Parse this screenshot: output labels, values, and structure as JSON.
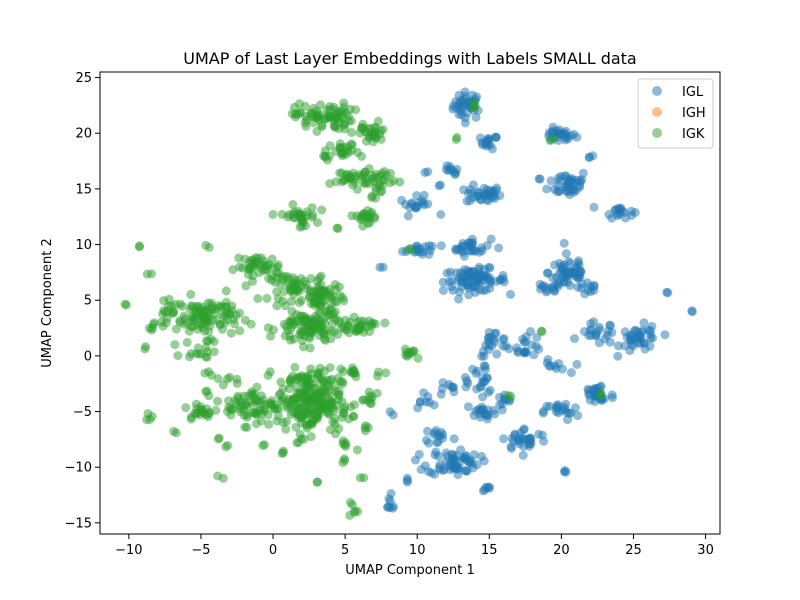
{
  "chart_data": {
    "type": "scatter",
    "title": "UMAP of Last Layer Embeddings with Labels SMALL data",
    "xlabel": "UMAP Component 1",
    "ylabel": "UMAP Component 2",
    "xlim": [
      -12,
      31
    ],
    "ylim": [
      -16,
      25.5
    ],
    "xticks": [
      -10,
      -5,
      0,
      5,
      10,
      15,
      20,
      25,
      30
    ],
    "yticks": [
      -15,
      -10,
      -5,
      0,
      5,
      10,
      15,
      20,
      25
    ],
    "grid": false,
    "legend_position": "top-right",
    "series": [
      {
        "name": "IGL",
        "color": "#1f77b4",
        "marker_alpha": 0.5,
        "clusters": [
          {
            "x": 13.5,
            "y": 22.5,
            "sx": 0.5,
            "sy": 0.6,
            "n": 40
          },
          {
            "x": 15.0,
            "y": 19.2,
            "sx": 0.3,
            "sy": 0.3,
            "n": 16
          },
          {
            "x": 19.8,
            "y": 19.8,
            "sx": 0.6,
            "sy": 0.3,
            "n": 26
          },
          {
            "x": 22.0,
            "y": 18.0,
            "sx": 0.15,
            "sy": 0.15,
            "n": 3
          },
          {
            "x": 12.3,
            "y": 16.5,
            "sx": 0.3,
            "sy": 0.3,
            "n": 10
          },
          {
            "x": 14.6,
            "y": 14.5,
            "sx": 0.6,
            "sy": 0.4,
            "n": 34
          },
          {
            "x": 20.5,
            "y": 15.5,
            "sx": 0.7,
            "sy": 0.6,
            "n": 40
          },
          {
            "x": 24.0,
            "y": 13.0,
            "sx": 0.5,
            "sy": 0.3,
            "n": 18
          },
          {
            "x": 10.0,
            "y": 13.5,
            "sx": 0.6,
            "sy": 0.4,
            "n": 18
          },
          {
            "x": 10.0,
            "y": 9.6,
            "sx": 0.5,
            "sy": 0.3,
            "n": 18
          },
          {
            "x": 13.7,
            "y": 9.8,
            "sx": 0.7,
            "sy": 0.4,
            "n": 30
          },
          {
            "x": 14.0,
            "y": 6.8,
            "sx": 1.1,
            "sy": 0.5,
            "n": 80
          },
          {
            "x": 20.5,
            "y": 7.5,
            "sx": 0.7,
            "sy": 0.8,
            "n": 50
          },
          {
            "x": 19.0,
            "y": 6.0,
            "sx": 0.5,
            "sy": 0.3,
            "n": 14
          },
          {
            "x": 22.0,
            "y": 6.0,
            "sx": 0.4,
            "sy": 0.3,
            "n": 10
          },
          {
            "x": 27.3,
            "y": 5.7,
            "sx": 0.1,
            "sy": 0.1,
            "n": 2
          },
          {
            "x": 29.0,
            "y": 4.0,
            "sx": 0.1,
            "sy": 0.1,
            "n": 2
          },
          {
            "x": 22.5,
            "y": 2.0,
            "sx": 0.6,
            "sy": 0.5,
            "n": 20
          },
          {
            "x": 25.5,
            "y": 1.5,
            "sx": 0.7,
            "sy": 0.6,
            "n": 40
          },
          {
            "x": 17.5,
            "y": 1.0,
            "sx": 0.6,
            "sy": 0.5,
            "n": 20
          },
          {
            "x": 15.3,
            "y": 1.2,
            "sx": 0.5,
            "sy": 0.6,
            "n": 20
          },
          {
            "x": 14.5,
            "y": -2.0,
            "sx": 0.5,
            "sy": 0.7,
            "n": 20
          },
          {
            "x": 19.5,
            "y": -1.0,
            "sx": 0.5,
            "sy": 0.3,
            "n": 10
          },
          {
            "x": 12.0,
            "y": -3.0,
            "sx": 0.4,
            "sy": 0.4,
            "n": 8
          },
          {
            "x": 10.5,
            "y": -4.0,
            "sx": 0.4,
            "sy": 0.4,
            "n": 8
          },
          {
            "x": 14.5,
            "y": -5.0,
            "sx": 0.6,
            "sy": 0.3,
            "n": 20
          },
          {
            "x": 16.0,
            "y": -4.0,
            "sx": 0.3,
            "sy": 0.3,
            "n": 8
          },
          {
            "x": 20.0,
            "y": -5.0,
            "sx": 0.6,
            "sy": 0.4,
            "n": 20
          },
          {
            "x": 22.5,
            "y": -3.5,
            "sx": 0.6,
            "sy": 0.6,
            "n": 30
          },
          {
            "x": 11.5,
            "y": -7.2,
            "sx": 0.5,
            "sy": 0.4,
            "n": 14
          },
          {
            "x": 17.5,
            "y": -7.5,
            "sx": 0.8,
            "sy": 0.5,
            "n": 30
          },
          {
            "x": 12.5,
            "y": -9.5,
            "sx": 0.9,
            "sy": 0.6,
            "n": 60
          },
          {
            "x": 14.8,
            "y": -12.0,
            "sx": 0.2,
            "sy": 0.2,
            "n": 6
          },
          {
            "x": 20.3,
            "y": -10.4,
            "sx": 0.15,
            "sy": 0.15,
            "n": 3
          },
          {
            "x": 8.0,
            "y": -13.3,
            "sx": 0.3,
            "sy": 0.4,
            "n": 8
          },
          {
            "x": 9.3,
            "y": -11.2,
            "sx": 0.15,
            "sy": 0.15,
            "n": 3
          },
          {
            "x": 13.2,
            "y": -2.5,
            "sx": 0.15,
            "sy": 0.15,
            "n": 3
          },
          {
            "x": 7.5,
            "y": 8.0,
            "sx": 0.1,
            "sy": 0.1,
            "n": 2
          },
          {
            "x": 8.2,
            "y": -5.2,
            "sx": 0.1,
            "sy": 0.1,
            "n": 2
          },
          {
            "x": 10.5,
            "y": 16.5,
            "sx": 0.1,
            "sy": 0.1,
            "n": 2
          },
          {
            "x": 11.5,
            "y": 15.3,
            "sx": 0.1,
            "sy": 0.1,
            "n": 2
          },
          {
            "x": 18.5,
            "y": 15.8,
            "sx": 0.1,
            "sy": 0.1,
            "n": 2
          }
        ]
      },
      {
        "name": "IGH",
        "color": "#ff7f0e",
        "marker_alpha": 0.5,
        "clusters": []
      },
      {
        "name": "IGK",
        "color": "#2ca02c",
        "marker_alpha": 0.5,
        "clusters": [
          {
            "x": 3.5,
            "y": 21.5,
            "sx": 1.0,
            "sy": 0.6,
            "n": 70
          },
          {
            "x": 6.8,
            "y": 20.0,
            "sx": 0.6,
            "sy": 0.5,
            "n": 30
          },
          {
            "x": 5.0,
            "y": 18.3,
            "sx": 0.5,
            "sy": 0.4,
            "n": 20
          },
          {
            "x": 3.8,
            "y": 17.8,
            "sx": 0.2,
            "sy": 0.4,
            "n": 6
          },
          {
            "x": 5.5,
            "y": 16.0,
            "sx": 0.7,
            "sy": 0.4,
            "n": 30
          },
          {
            "x": 7.5,
            "y": 16.0,
            "sx": 0.6,
            "sy": 0.4,
            "n": 20
          },
          {
            "x": 7.3,
            "y": 14.8,
            "sx": 0.3,
            "sy": 0.3,
            "n": 8
          },
          {
            "x": 1.8,
            "y": 12.5,
            "sx": 0.6,
            "sy": 0.5,
            "n": 30
          },
          {
            "x": 6.5,
            "y": 12.6,
            "sx": 0.6,
            "sy": 0.3,
            "n": 20
          },
          {
            "x": 4.5,
            "y": 11.3,
            "sx": 0.1,
            "sy": 0.1,
            "n": 2
          },
          {
            "x": -9.3,
            "y": 9.9,
            "sx": 0.1,
            "sy": 0.1,
            "n": 2
          },
          {
            "x": -4.5,
            "y": 9.7,
            "sx": 0.1,
            "sy": 0.1,
            "n": 2
          },
          {
            "x": -1.0,
            "y": 8.0,
            "sx": 0.8,
            "sy": 0.5,
            "n": 40
          },
          {
            "x": 1.5,
            "y": 6.2,
            "sx": 0.9,
            "sy": 0.6,
            "n": 50
          },
          {
            "x": 3.5,
            "y": 5.0,
            "sx": 0.7,
            "sy": 0.9,
            "n": 60
          },
          {
            "x": -8.7,
            "y": 7.4,
            "sx": 0.1,
            "sy": 0.1,
            "n": 2
          },
          {
            "x": -4.5,
            "y": 3.5,
            "sx": 1.1,
            "sy": 0.9,
            "n": 90
          },
          {
            "x": -7.0,
            "y": 4.0,
            "sx": 0.5,
            "sy": 0.4,
            "n": 16
          },
          {
            "x": -7.5,
            "y": 3.0,
            "sx": 0.3,
            "sy": 0.3,
            "n": 6
          },
          {
            "x": -10.2,
            "y": 4.6,
            "sx": 0.1,
            "sy": 0.1,
            "n": 2
          },
          {
            "x": -8.3,
            "y": 2.4,
            "sx": 0.15,
            "sy": 0.15,
            "n": 3
          },
          {
            "x": -9.0,
            "y": 0.6,
            "sx": 0.1,
            "sy": 0.1,
            "n": 2
          },
          {
            "x": 2.5,
            "y": 2.5,
            "sx": 1.1,
            "sy": 0.8,
            "n": 100
          },
          {
            "x": 6.0,
            "y": 2.7,
            "sx": 0.8,
            "sy": 0.3,
            "n": 30
          },
          {
            "x": -5.0,
            "y": 0.5,
            "sx": 0.6,
            "sy": 0.4,
            "n": 14
          },
          {
            "x": 2.5,
            "y": -4.0,
            "sx": 1.1,
            "sy": 1.4,
            "n": 220
          },
          {
            "x": -1.5,
            "y": -4.5,
            "sx": 0.9,
            "sy": 0.8,
            "n": 60
          },
          {
            "x": 5.3,
            "y": -1.3,
            "sx": 0.4,
            "sy": 0.3,
            "n": 10
          },
          {
            "x": 9.5,
            "y": 0.3,
            "sx": 0.4,
            "sy": 0.3,
            "n": 10
          },
          {
            "x": -5.0,
            "y": -5.0,
            "sx": 0.6,
            "sy": 0.4,
            "n": 20
          },
          {
            "x": -3.0,
            "y": -2.2,
            "sx": 0.4,
            "sy": 0.3,
            "n": 6
          },
          {
            "x": -4.5,
            "y": -1.5,
            "sx": 0.2,
            "sy": 0.2,
            "n": 3
          },
          {
            "x": -4.5,
            "y": -3.2,
            "sx": 0.15,
            "sy": 0.15,
            "n": 3
          },
          {
            "x": 5.0,
            "y": -5.5,
            "sx": 0.4,
            "sy": 0.3,
            "n": 8
          },
          {
            "x": 6.8,
            "y": -4.0,
            "sx": 0.4,
            "sy": 0.5,
            "n": 10
          },
          {
            "x": 7.5,
            "y": -1.5,
            "sx": 0.15,
            "sy": 0.15,
            "n": 3
          },
          {
            "x": 6.5,
            "y": -6.5,
            "sx": 0.2,
            "sy": 0.2,
            "n": 4
          },
          {
            "x": 5.0,
            "y": -7.8,
            "sx": 0.3,
            "sy": 0.3,
            "n": 6
          },
          {
            "x": 5.0,
            "y": -9.6,
            "sx": 0.1,
            "sy": 0.2,
            "n": 3
          },
          {
            "x": 6.2,
            "y": -11.0,
            "sx": 0.1,
            "sy": 0.1,
            "n": 2
          },
          {
            "x": 3.0,
            "y": -11.4,
            "sx": 0.1,
            "sy": 0.1,
            "n": 2
          },
          {
            "x": 5.6,
            "y": -13.7,
            "sx": 0.15,
            "sy": 0.4,
            "n": 6
          },
          {
            "x": -3.5,
            "y": -11.0,
            "sx": 0.1,
            "sy": 0.1,
            "n": 2
          },
          {
            "x": -6.8,
            "y": -6.8,
            "sx": 0.1,
            "sy": 0.1,
            "n": 2
          },
          {
            "x": -8.5,
            "y": -5.4,
            "sx": 0.2,
            "sy": 0.2,
            "n": 4
          },
          {
            "x": -3.8,
            "y": -7.4,
            "sx": 0.1,
            "sy": 0.1,
            "n": 2
          },
          {
            "x": -3.3,
            "y": -8.0,
            "sx": 0.1,
            "sy": 0.1,
            "n": 2
          },
          {
            "x": -0.7,
            "y": -8.0,
            "sx": 0.1,
            "sy": 0.1,
            "n": 2
          },
          {
            "x": 0.7,
            "y": -8.8,
            "sx": 0.15,
            "sy": 0.15,
            "n": 3
          },
          {
            "x": 2.0,
            "y": -7.5,
            "sx": 0.2,
            "sy": 0.2,
            "n": 4
          },
          {
            "x": 14.0,
            "y": 22.3,
            "sx": 0.15,
            "sy": 0.3,
            "n": 4
          },
          {
            "x": 12.8,
            "y": 19.5,
            "sx": 0.1,
            "sy": 0.1,
            "n": 2
          },
          {
            "x": 19.3,
            "y": 19.5,
            "sx": 0.1,
            "sy": 0.1,
            "n": 2
          },
          {
            "x": 9.5,
            "y": 9.5,
            "sx": 0.1,
            "sy": 0.1,
            "n": 2
          },
          {
            "x": 18.6,
            "y": 2.2,
            "sx": 0.1,
            "sy": 0.1,
            "n": 2
          },
          {
            "x": 22.8,
            "y": -3.5,
            "sx": 0.1,
            "sy": 0.1,
            "n": 2
          },
          {
            "x": 16.3,
            "y": -3.6,
            "sx": 0.1,
            "sy": 0.1,
            "n": 2
          },
          {
            "x": 1.5,
            "y": -2.0,
            "sx": 0.3,
            "sy": 0.2,
            "n": 6
          }
        ]
      }
    ]
  }
}
